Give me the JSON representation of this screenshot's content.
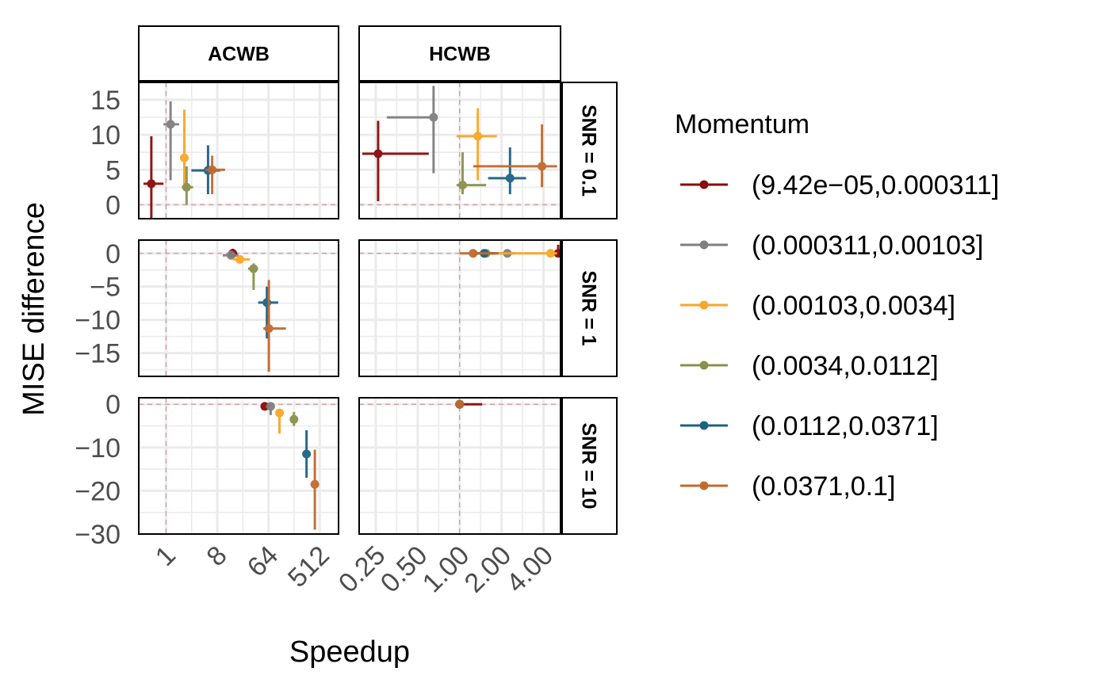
{
  "chart_data": {
    "type": "scatter",
    "xlabel": "Speedup",
    "ylabel": "MISE difference",
    "legend": {
      "title": "Momentum",
      "placement": "right",
      "entries": [
        {
          "label": "(9.42e−05,0.000311]",
          "color": "#8B0A0A"
        },
        {
          "label": "(0.000311,0.00103]",
          "color": "#7F7F7F"
        },
        {
          "label": "(0.00103,0.0034]",
          "color": "#FAA626"
        },
        {
          "label": "(0.0034,0.0112]",
          "color": "#8A914C"
        },
        {
          "label": "(0.0112,0.0371]",
          "color": "#1C6383"
        },
        {
          "label": "(0.0371,0.1]",
          "color": "#C2692E"
        }
      ]
    },
    "facet_columns": [
      {
        "label": "ACWB",
        "x_scale": "log2",
        "xlim": [
          0.33,
          1100
        ],
        "x_ticks": [
          1,
          8,
          64,
          512
        ],
        "x_tick_labels": [
          "1",
          "8",
          "64",
          "512"
        ],
        "x_ref": 1
      },
      {
        "label": "HCWB",
        "x_scale": "log2",
        "xlim": [
          0.19,
          5.3
        ],
        "x_ticks": [
          0.25,
          0.5,
          1,
          2,
          4
        ],
        "x_tick_labels": [
          "0.25",
          "0.50",
          "1.00",
          "2.00",
          "4.00"
        ],
        "x_ref": 1
      }
    ],
    "facet_rows": [
      {
        "label": "SNR = 0.1",
        "ylim": [
          -2,
          17.5
        ],
        "y_ticks": [
          0,
          5,
          10,
          15
        ],
        "y_tick_labels": [
          "0",
          "5",
          "10",
          "15"
        ],
        "y_ref": 0
      },
      {
        "label": "SNR = 1",
        "ylim": [
          -18.5,
          2
        ],
        "y_ticks": [
          0,
          -5,
          -10,
          -15
        ],
        "y_tick_labels": [
          "0",
          "−5",
          "−10",
          "−15"
        ],
        "y_ref": 0
      },
      {
        "label": "SNR = 10",
        "ylim": [
          -30,
          1.5
        ],
        "y_ticks": [
          0,
          -10,
          -20,
          -30
        ],
        "y_tick_labels": [
          "0",
          "−10",
          "−20",
          "−30"
        ],
        "y_ref": 0
      }
    ],
    "grid": true,
    "points": [
      {
        "col": 0,
        "row": 0,
        "series": 0,
        "x": 0.55,
        "x_lo": 0.4,
        "x_hi": 0.9,
        "y": 3.0,
        "y_lo": -2.0,
        "y_hi": 9.8
      },
      {
        "col": 0,
        "row": 0,
        "series": 1,
        "x": 1.2,
        "x_lo": 0.9,
        "x_hi": 1.7,
        "y": 11.5,
        "y_lo": 3.5,
        "y_hi": 14.8
      },
      {
        "col": 0,
        "row": 0,
        "series": 2,
        "x": 2.1,
        "x_lo": 1.9,
        "x_hi": 2.4,
        "y": 6.7,
        "y_lo": 3.0,
        "y_hi": 13.6
      },
      {
        "col": 0,
        "row": 0,
        "series": 3,
        "x": 2.3,
        "x_lo": 1.9,
        "x_hi": 3.0,
        "y": 2.5,
        "y_lo": 0.0,
        "y_hi": 5.5
      },
      {
        "col": 0,
        "row": 0,
        "series": 4,
        "x": 5.5,
        "x_lo": 2.8,
        "x_hi": 9.0,
        "y": 4.9,
        "y_lo": 1.5,
        "y_hi": 8.5
      },
      {
        "col": 0,
        "row": 0,
        "series": 5,
        "x": 6.5,
        "x_lo": 5.0,
        "x_hi": 11.0,
        "y": 5.0,
        "y_lo": 1.5,
        "y_hi": 7.0
      },
      {
        "col": 0,
        "row": 1,
        "series": 0,
        "x": 15,
        "x_lo": 13,
        "x_hi": 18,
        "y": 0.0,
        "y_lo": -0.6,
        "y_hi": 0.7
      },
      {
        "col": 0,
        "row": 1,
        "series": 1,
        "x": 14,
        "x_lo": 10,
        "x_hi": 19,
        "y": -0.3,
        "y_lo": -0.8,
        "y_hi": 0.4
      },
      {
        "col": 0,
        "row": 1,
        "series": 2,
        "x": 20,
        "x_lo": 15,
        "x_hi": 30,
        "y": -0.9,
        "y_lo": -1.3,
        "y_hi": -0.5
      },
      {
        "col": 0,
        "row": 1,
        "series": 3,
        "x": 35,
        "x_lo": 28,
        "x_hi": 42,
        "y": -2.3,
        "y_lo": -5.5,
        "y_hi": -1.5
      },
      {
        "col": 0,
        "row": 1,
        "series": 4,
        "x": 60,
        "x_lo": 42,
        "x_hi": 95,
        "y": -7.4,
        "y_lo": -12.8,
        "y_hi": -5.0
      },
      {
        "col": 0,
        "row": 1,
        "series": 5,
        "x": 65,
        "x_lo": 52,
        "x_hi": 130,
        "y": -11.3,
        "y_lo": -17.8,
        "y_hi": -4.0
      },
      {
        "col": 0,
        "row": 2,
        "series": 0,
        "x": 55,
        "x_lo": 50,
        "x_hi": 62,
        "y": -0.5,
        "y_lo": -1.2,
        "y_hi": 0.5
      },
      {
        "col": 0,
        "row": 2,
        "series": 1,
        "x": 70,
        "x_lo": 58,
        "x_hi": 78,
        "y": -0.5,
        "y_lo": -2.5,
        "y_hi": 0.5
      },
      {
        "col": 0,
        "row": 2,
        "series": 2,
        "x": 100,
        "x_lo": 90,
        "x_hi": 112,
        "y": -2.0,
        "y_lo": -6.8,
        "y_hi": -1.5
      },
      {
        "col": 0,
        "row": 2,
        "series": 3,
        "x": 180,
        "x_lo": 165,
        "x_hi": 195,
        "y": -3.5,
        "y_lo": -5.0,
        "y_hi": -1.8
      },
      {
        "col": 0,
        "row": 2,
        "series": 4,
        "x": 300,
        "x_lo": 285,
        "x_hi": 315,
        "y": -11.5,
        "y_lo": -17.0,
        "y_hi": -6.0
      },
      {
        "col": 0,
        "row": 2,
        "series": 5,
        "x": 420,
        "x_lo": 400,
        "x_hi": 440,
        "y": -18.5,
        "y_lo": -29.0,
        "y_hi": -10.5
      },
      {
        "col": 1,
        "row": 0,
        "series": 0,
        "x": 0.26,
        "x_lo": 0.2,
        "x_hi": 0.6,
        "y": 7.3,
        "y_lo": 0.5,
        "y_hi": 12.0
      },
      {
        "col": 1,
        "row": 0,
        "series": 1,
        "x": 0.65,
        "x_lo": 0.3,
        "x_hi": 0.66,
        "y": 12.5,
        "y_lo": 4.5,
        "y_hi": 17.0
      },
      {
        "col": 1,
        "row": 0,
        "series": 2,
        "x": 1.35,
        "x_lo": 0.95,
        "x_hi": 1.85,
        "y": 9.8,
        "y_lo": 3.5,
        "y_hi": 13.8
      },
      {
        "col": 1,
        "row": 0,
        "series": 3,
        "x": 1.05,
        "x_lo": 0.95,
        "x_hi": 1.55,
        "y": 2.8,
        "y_lo": 1.5,
        "y_hi": 7.5
      },
      {
        "col": 1,
        "row": 0,
        "series": 4,
        "x": 2.3,
        "x_lo": 1.6,
        "x_hi": 3.0,
        "y": 3.8,
        "y_lo": 1.5,
        "y_hi": 8.2
      },
      {
        "col": 1,
        "row": 0,
        "series": 5,
        "x": 3.9,
        "x_lo": 1.25,
        "x_hi": 5.0,
        "y": 5.5,
        "y_lo": 2.5,
        "y_hi": 11.5
      },
      {
        "col": 1,
        "row": 1,
        "series": 0,
        "x": 5.1,
        "x_lo": 4.8,
        "x_hi": 5.3,
        "y": 0.0,
        "y_lo": -0.3,
        "y_hi": 1.3
      },
      {
        "col": 1,
        "row": 1,
        "series": 1,
        "x": 2.2,
        "x_lo": 1.7,
        "x_hi": 2.5,
        "y": 0.0,
        "y_lo": -0.3,
        "y_hi": 0.3
      },
      {
        "col": 1,
        "row": 1,
        "series": 2,
        "x": 4.5,
        "x_lo": 1.3,
        "x_hi": 5.0,
        "y": 0.0,
        "y_lo": -0.3,
        "y_hi": 0.3
      },
      {
        "col": 1,
        "row": 1,
        "series": 3,
        "x": 1.55,
        "x_lo": 1.3,
        "x_hi": 1.8,
        "y": 0.0,
        "y_lo": -0.3,
        "y_hi": 0.3
      },
      {
        "col": 1,
        "row": 1,
        "series": 4,
        "x": 1.5,
        "x_lo": 1.3,
        "x_hi": 1.8,
        "y": 0.0,
        "y_lo": -0.5,
        "y_hi": 0.3
      },
      {
        "col": 1,
        "row": 1,
        "series": 5,
        "x": 1.25,
        "x_lo": 1.0,
        "x_hi": 1.9,
        "y": 0.0,
        "y_lo": -0.3,
        "y_hi": 0.3
      },
      {
        "col": 1,
        "row": 2,
        "series": 0,
        "x": 1.0,
        "x_lo": 0.98,
        "x_hi": 1.45,
        "y": 0.0,
        "y_lo": -0.4,
        "y_hi": 0.4
      },
      {
        "col": 1,
        "row": 2,
        "series": 1,
        "x": 1.0,
        "x_lo": 0.98,
        "x_hi": 1.02,
        "y": 0.0,
        "y_lo": -0.3,
        "y_hi": 0.3
      },
      {
        "col": 1,
        "row": 2,
        "series": 2,
        "x": 1.0,
        "x_lo": 0.98,
        "x_hi": 1.02,
        "y": 0.0,
        "y_lo": -0.3,
        "y_hi": 0.3
      },
      {
        "col": 1,
        "row": 2,
        "series": 3,
        "x": 1.0,
        "x_lo": 0.98,
        "x_hi": 1.02,
        "y": 0.0,
        "y_lo": -0.3,
        "y_hi": 0.3
      },
      {
        "col": 1,
        "row": 2,
        "series": 4,
        "x": 1.0,
        "x_lo": 0.98,
        "x_hi": 1.02,
        "y": 0.0,
        "y_lo": -0.3,
        "y_hi": 0.3
      },
      {
        "col": 1,
        "row": 2,
        "series": 5,
        "x": 1.0,
        "x_lo": 0.98,
        "x_hi": 1.02,
        "y": 0.0,
        "y_lo": -0.3,
        "y_hi": 0.3
      }
    ]
  }
}
